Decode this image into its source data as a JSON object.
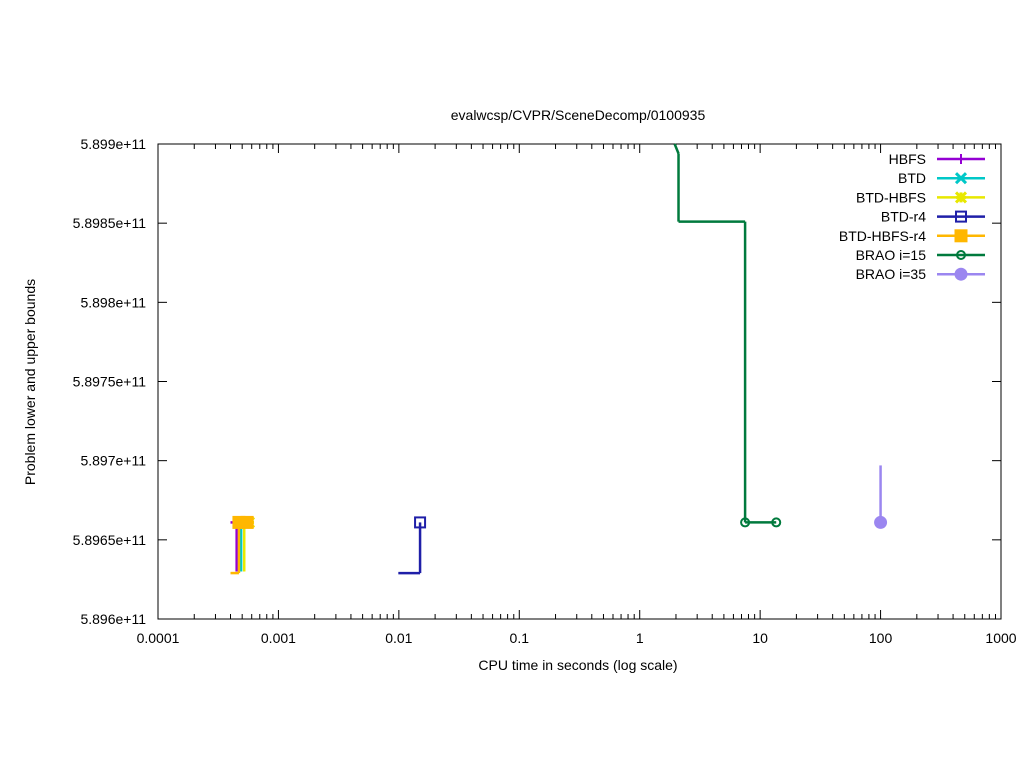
{
  "chart_data": {
    "type": "line",
    "title": "evalwcsp/CVPR/SceneDecomp/0100935",
    "xlabel": "CPU time in seconds (log scale)",
    "ylabel": "Problem lower and upper bounds",
    "xscale": "log",
    "xlim": [
      0.0001,
      1000
    ],
    "ylim": [
      589600000000,
      589900000000
    ],
    "x_ticks": [
      {
        "v": 0.0001,
        "label": "0.0001"
      },
      {
        "v": 0.001,
        "label": "0.001"
      },
      {
        "v": 0.01,
        "label": "0.01"
      },
      {
        "v": 0.1,
        "label": "0.1"
      },
      {
        "v": 1,
        "label": "1"
      },
      {
        "v": 10,
        "label": "10"
      },
      {
        "v": 100,
        "label": "100"
      },
      {
        "v": 1000,
        "label": "1000"
      }
    ],
    "y_ticks": [
      {
        "v": 589600000000,
        "label": "5.896e+11"
      },
      {
        "v": 589650000000,
        "label": "5.8965e+11"
      },
      {
        "v": 589700000000,
        "label": "5.897e+11"
      },
      {
        "v": 589750000000,
        "label": "5.8975e+11"
      },
      {
        "v": 589800000000,
        "label": "5.898e+11"
      },
      {
        "v": 589850000000,
        "label": "5.8985e+11"
      },
      {
        "v": 589900000000,
        "label": "5.899e+11"
      }
    ],
    "grid": false,
    "legend_position": "top-right",
    "series": [
      {
        "name": "HBFS",
        "color": "#9400d3",
        "marker": "plus",
        "segments": [
          [
            [
              0.00045,
              589630000000
            ],
            [
              0.00045,
              589661000000
            ]
          ],
          [
            [
              0.0004,
              589661000000
            ],
            [
              0.00048,
              589661000000
            ]
          ]
        ],
        "markers": [
          [
            0.00048,
            589661000000
          ]
        ]
      },
      {
        "name": "BTD",
        "color": "#00c8c8",
        "marker": "x",
        "segments": [
          [
            [
              0.00049,
              589630000000
            ],
            [
              0.00049,
              589661000000
            ]
          ],
          [
            [
              0.00049,
              589661000000
            ],
            [
              0.00054,
              589661000000
            ]
          ]
        ],
        "markers": [
          [
            0.00054,
            589661000000
          ]
        ]
      },
      {
        "name": "BTD-HBFS",
        "color": "#e8e800",
        "marker": "star",
        "segments": [
          [
            [
              0.00052,
              589630000000
            ],
            [
              0.00052,
              589661000000
            ]
          ],
          [
            [
              0.00052,
              589661000000
            ],
            [
              0.00057,
              589661000000
            ]
          ]
        ],
        "markers": [
          [
            0.00057,
            589661000000
          ]
        ]
      },
      {
        "name": "BTD-r4",
        "color": "#1f1fa8",
        "marker": "square-open",
        "segments": [
          [
            [
              0.0099,
              589629000000
            ],
            [
              0.015,
              589629000000
            ]
          ],
          [
            [
              0.015,
              589629000000
            ],
            [
              0.015,
              589661000000
            ]
          ]
        ],
        "markers": [
          [
            0.015,
            589661000000
          ]
        ]
      },
      {
        "name": "BTD-HBFS-r4",
        "color": "#ffb700",
        "marker": "square-filled",
        "segments": [
          [
            [
              0.0004,
              589629000000
            ],
            [
              0.00047,
              589629000000
            ]
          ],
          [
            [
              0.00047,
              589629000000
            ],
            [
              0.00047,
              589661000000
            ]
          ],
          [
            [
              0.00047,
              589661000000
            ],
            [
              0.00055,
              589661000000
            ]
          ]
        ],
        "markers": [
          [
            0.00047,
            589661000000
          ],
          [
            0.00055,
            589661000000
          ]
        ]
      },
      {
        "name": "BRAO i=15",
        "color": "#007a3d",
        "marker": "circle-open",
        "segments": [
          [
            [
              1.95,
              589900000000
            ],
            [
              2.1,
              589894000000
            ]
          ],
          [
            [
              2.1,
              589894000000
            ],
            [
              2.1,
              589851000000
            ]
          ],
          [
            [
              2.1,
              589851000000
            ],
            [
              7.5,
              589851000000
            ]
          ],
          [
            [
              7.5,
              589851000000
            ],
            [
              7.5,
              589661000000
            ]
          ],
          [
            [
              7.5,
              589661000000
            ],
            [
              13.6,
              589661000000
            ]
          ]
        ],
        "markers": [
          [
            7.5,
            589661000000
          ],
          [
            13.6,
            589661000000
          ]
        ]
      },
      {
        "name": "BRAO i=35",
        "color": "#9b86f0",
        "marker": "circle-filled",
        "segments": [
          [
            [
              100,
              589697000000
            ],
            [
              100,
              589661000000
            ]
          ]
        ],
        "markers": [
          [
            100,
            589661000000
          ]
        ]
      }
    ]
  }
}
